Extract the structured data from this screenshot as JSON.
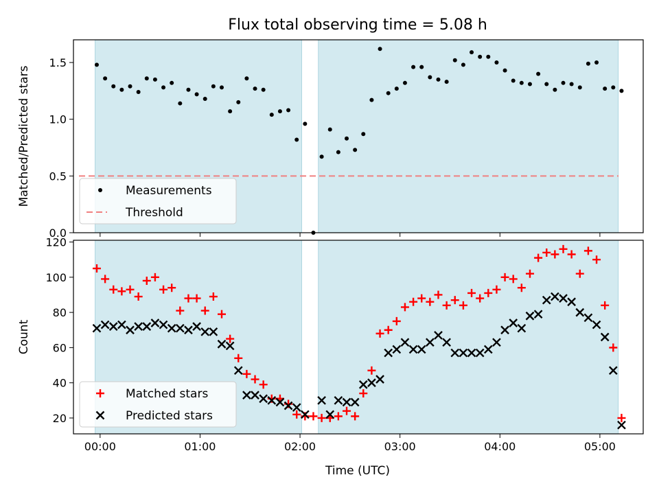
{
  "figure": {
    "title": "Flux total observing time = 5.08 h",
    "xlabel": "Time (UTC)"
  },
  "chart_data": [
    {
      "type": "scatter",
      "panel": "top",
      "title": "Flux total observing time = 5.08 h",
      "ylabel": "Matched/Predicted stars",
      "xlim": [
        "23:44",
        "05:26"
      ],
      "ylim": [
        0,
        1.7
      ],
      "xticks": [
        "00:00",
        "01:00",
        "02:00",
        "03:00",
        "04:00",
        "05:00"
      ],
      "yticks": [
        "0.0",
        "0.5",
        "1.0",
        "1.5"
      ],
      "shaded_intervals": [
        [
          "23:57",
          "02:01"
        ],
        [
          "02:11",
          "05:11"
        ]
      ],
      "shade_color": "#d3eaf0",
      "threshold": {
        "name": "Threshold",
        "value": 0.5,
        "color": "#f08080",
        "style": "dashed"
      },
      "series": [
        {
          "name": "Measurements",
          "color": "#000000",
          "marker": "dot",
          "points": [
            [
              "23:58",
              1.48
            ],
            [
              "00:03",
              1.36
            ],
            [
              "00:08",
              1.29
            ],
            [
              "00:13",
              1.26
            ],
            [
              "00:18",
              1.29
            ],
            [
              "00:23",
              1.24
            ],
            [
              "00:28",
              1.36
            ],
            [
              "00:33",
              1.35
            ],
            [
              "00:38",
              1.28
            ],
            [
              "00:43",
              1.32
            ],
            [
              "00:48",
              1.14
            ],
            [
              "00:53",
              1.26
            ],
            [
              "00:58",
              1.22
            ],
            [
              "01:03",
              1.18
            ],
            [
              "01:08",
              1.29
            ],
            [
              "01:13",
              1.28
            ],
            [
              "01:18",
              1.07
            ],
            [
              "01:23",
              1.15
            ],
            [
              "01:28",
              1.36
            ],
            [
              "01:33",
              1.27
            ],
            [
              "01:38",
              1.26
            ],
            [
              "01:43",
              1.04
            ],
            [
              "01:48",
              1.07
            ],
            [
              "01:53",
              1.08
            ],
            [
              "01:58",
              0.82
            ],
            [
              "02:03",
              0.96
            ],
            [
              "02:08",
              0.0
            ],
            [
              "02:13",
              0.67
            ],
            [
              "02:18",
              0.91
            ],
            [
              "02:23",
              0.71
            ],
            [
              "02:28",
              0.83
            ],
            [
              "02:33",
              0.73
            ],
            [
              "02:38",
              0.87
            ],
            [
              "02:43",
              1.17
            ],
            [
              "02:48",
              1.62
            ],
            [
              "02:53",
              1.23
            ],
            [
              "02:58",
              1.27
            ],
            [
              "03:03",
              1.32
            ],
            [
              "03:08",
              1.46
            ],
            [
              "03:13",
              1.46
            ],
            [
              "03:18",
              1.37
            ],
            [
              "03:23",
              1.35
            ],
            [
              "03:28",
              1.33
            ],
            [
              "03:33",
              1.52
            ],
            [
              "03:38",
              1.48
            ],
            [
              "03:43",
              1.59
            ],
            [
              "03:48",
              1.55
            ],
            [
              "03:53",
              1.55
            ],
            [
              "03:58",
              1.5
            ],
            [
              "04:03",
              1.43
            ],
            [
              "04:08",
              1.34
            ],
            [
              "04:13",
              1.32
            ],
            [
              "04:18",
              1.31
            ],
            [
              "04:23",
              1.4
            ],
            [
              "04:28",
              1.31
            ],
            [
              "04:33",
              1.26
            ],
            [
              "04:38",
              1.32
            ],
            [
              "04:43",
              1.31
            ],
            [
              "04:48",
              1.28
            ],
            [
              "04:53",
              1.49
            ],
            [
              "04:58",
              1.5
            ],
            [
              "05:03",
              1.27
            ],
            [
              "05:08",
              1.28
            ],
            [
              "05:13",
              1.25
            ]
          ]
        }
      ],
      "legend": {
        "placement": "lower-left",
        "entries": [
          "Measurements",
          "Threshold"
        ]
      }
    },
    {
      "type": "scatter",
      "panel": "bottom",
      "xlabel": "Time (UTC)",
      "ylabel": "Count",
      "xlim": [
        "23:44",
        "05:26"
      ],
      "ylim": [
        11,
        121
      ],
      "xticks": [
        "00:00",
        "01:00",
        "02:00",
        "03:00",
        "04:00",
        "05:00"
      ],
      "yticks": [
        "20",
        "40",
        "60",
        "80",
        "100",
        "120"
      ],
      "shaded_intervals": [
        [
          "23:57",
          "02:01"
        ],
        [
          "02:11",
          "05:11"
        ]
      ],
      "shade_color": "#d3eaf0",
      "series": [
        {
          "name": "Matched stars",
          "color": "#ff0000",
          "marker": "plus",
          "points": [
            [
              "23:58",
              105
            ],
            [
              "00:03",
              99
            ],
            [
              "00:08",
              93
            ],
            [
              "00:13",
              92
            ],
            [
              "00:18",
              93
            ],
            [
              "00:23",
              89
            ],
            [
              "00:28",
              98
            ],
            [
              "00:33",
              100
            ],
            [
              "00:38",
              93
            ],
            [
              "00:43",
              94
            ],
            [
              "00:48",
              81
            ],
            [
              "00:53",
              88
            ],
            [
              "00:58",
              88
            ],
            [
              "01:03",
              81
            ],
            [
              "01:08",
              89
            ],
            [
              "01:13",
              79
            ],
            [
              "01:18",
              65
            ],
            [
              "01:23",
              54
            ],
            [
              "01:28",
              45
            ],
            [
              "01:33",
              42
            ],
            [
              "01:38",
              39
            ],
            [
              "01:43",
              31
            ],
            [
              "01:48",
              31
            ],
            [
              "01:53",
              28
            ],
            [
              "01:58",
              22
            ],
            [
              "02:03",
              21
            ],
            [
              "02:08",
              21
            ],
            [
              "02:13",
              20
            ],
            [
              "02:18",
              20
            ],
            [
              "02:23",
              21
            ],
            [
              "02:28",
              24
            ],
            [
              "02:33",
              21
            ],
            [
              "02:38",
              34
            ],
            [
              "02:43",
              47
            ],
            [
              "02:48",
              68
            ],
            [
              "02:53",
              70
            ],
            [
              "02:58",
              75
            ],
            [
              "03:03",
              83
            ],
            [
              "03:08",
              86
            ],
            [
              "03:13",
              88
            ],
            [
              "03:18",
              86
            ],
            [
              "03:23",
              90
            ],
            [
              "03:28",
              84
            ],
            [
              "03:33",
              87
            ],
            [
              "03:38",
              84
            ],
            [
              "03:43",
              91
            ],
            [
              "03:48",
              88
            ],
            [
              "03:53",
              91
            ],
            [
              "03:58",
              93
            ],
            [
              "04:03",
              100
            ],
            [
              "04:08",
              99
            ],
            [
              "04:13",
              94
            ],
            [
              "04:18",
              102
            ],
            [
              "04:23",
              111
            ],
            [
              "04:28",
              114
            ],
            [
              "04:33",
              113
            ],
            [
              "04:38",
              116
            ],
            [
              "04:43",
              113
            ],
            [
              "04:48",
              102
            ],
            [
              "04:53",
              115
            ],
            [
              "04:58",
              110
            ],
            [
              "05:03",
              84
            ],
            [
              "05:08",
              60
            ],
            [
              "05:13",
              20
            ]
          ]
        },
        {
          "name": "Predicted stars",
          "color": "#000000",
          "marker": "x",
          "points": [
            [
              "23:58",
              71
            ],
            [
              "00:03",
              73
            ],
            [
              "00:08",
              72
            ],
            [
              "00:13",
              73
            ],
            [
              "00:18",
              70
            ],
            [
              "00:23",
              72
            ],
            [
              "00:28",
              72
            ],
            [
              "00:33",
              74
            ],
            [
              "00:38",
              73
            ],
            [
              "00:43",
              71
            ],
            [
              "00:48",
              71
            ],
            [
              "00:53",
              70
            ],
            [
              "00:58",
              72
            ],
            [
              "01:03",
              69
            ],
            [
              "01:08",
              69
            ],
            [
              "01:13",
              62
            ],
            [
              "01:18",
              61
            ],
            [
              "01:23",
              47
            ],
            [
              "01:28",
              33
            ],
            [
              "01:33",
              33
            ],
            [
              "01:38",
              31
            ],
            [
              "01:43",
              30
            ],
            [
              "01:48",
              29
            ],
            [
              "01:53",
              27
            ],
            [
              "01:58",
              26
            ],
            [
              "02:03",
              22
            ],
            [
              "02:13",
              30
            ],
            [
              "02:18",
              22
            ],
            [
              "02:23",
              30
            ],
            [
              "02:28",
              29
            ],
            [
              "02:33",
              29
            ],
            [
              "02:38",
              39
            ],
            [
              "02:43",
              40
            ],
            [
              "02:48",
              42
            ],
            [
              "02:53",
              57
            ],
            [
              "02:58",
              59
            ],
            [
              "03:03",
              63
            ],
            [
              "03:08",
              59
            ],
            [
              "03:13",
              59
            ],
            [
              "03:18",
              63
            ],
            [
              "03:23",
              67
            ],
            [
              "03:28",
              63
            ],
            [
              "03:33",
              57
            ],
            [
              "03:38",
              57
            ],
            [
              "03:43",
              57
            ],
            [
              "03:48",
              57
            ],
            [
              "03:53",
              59
            ],
            [
              "03:58",
              63
            ],
            [
              "04:03",
              70
            ],
            [
              "04:08",
              74
            ],
            [
              "04:13",
              71
            ],
            [
              "04:18",
              78
            ],
            [
              "04:23",
              79
            ],
            [
              "04:28",
              87
            ],
            [
              "04:33",
              89
            ],
            [
              "04:38",
              88
            ],
            [
              "04:43",
              86
            ],
            [
              "04:48",
              80
            ],
            [
              "04:53",
              77
            ],
            [
              "04:58",
              73
            ],
            [
              "05:03",
              66
            ],
            [
              "05:08",
              47
            ],
            [
              "05:13",
              16
            ]
          ]
        }
      ],
      "legend": {
        "placement": "lower-left",
        "entries": [
          "Matched stars",
          "Predicted stars"
        ]
      }
    }
  ]
}
